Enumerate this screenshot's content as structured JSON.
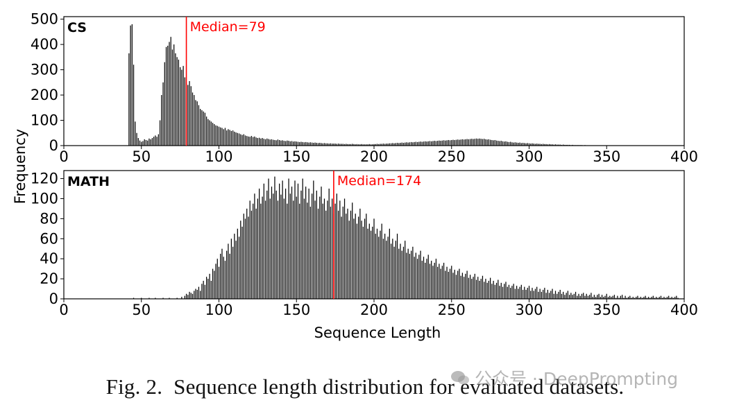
{
  "chart_data": [
    {
      "type": "bar",
      "panel_label": "CS",
      "median_label": "Median=79",
      "median": 79,
      "xlim": [
        0,
        400
      ],
      "ylim": [
        0,
        510
      ],
      "xticks": [
        0,
        50,
        100,
        150,
        200,
        250,
        300,
        350,
        400
      ],
      "yticks": [
        0,
        100,
        200,
        300,
        400,
        500
      ],
      "bin_width": 1,
      "x_start": 42,
      "values": [
        365,
        475,
        480,
        320,
        95,
        50,
        30,
        20,
        15,
        18,
        25,
        22,
        20,
        28,
        25,
        30,
        35,
        40,
        35,
        45,
        100,
        200,
        250,
        330,
        390,
        395,
        410,
        430,
        380,
        400,
        365,
        350,
        340,
        310,
        300,
        315,
        270,
        250,
        240,
        255,
        235,
        210,
        200,
        180,
        175,
        160,
        145,
        140,
        135,
        130,
        115,
        105,
        100,
        95,
        90,
        85,
        80,
        78,
        75,
        72,
        70,
        65,
        70,
        60,
        65,
        62,
        58,
        60,
        55,
        52,
        50,
        48,
        45,
        42,
        45,
        40,
        38,
        36,
        35,
        38,
        34,
        36,
        32,
        30,
        31,
        28,
        30,
        27,
        25,
        28,
        26,
        24,
        25,
        23,
        22,
        21,
        24,
        22,
        20,
        21,
        19,
        18,
        20,
        19,
        17,
        18,
        16,
        17,
        16,
        15,
        14,
        15,
        14,
        13,
        14,
        13,
        12,
        13,
        12,
        11,
        12,
        11,
        10,
        11,
        10,
        9,
        10,
        9,
        9,
        8,
        9,
        8,
        8,
        8,
        7,
        8,
        7,
        7,
        7,
        6,
        7,
        6,
        6,
        6,
        7,
        6,
        5,
        6,
        5,
        5,
        6,
        5,
        5,
        5,
        5,
        6,
        5,
        5,
        6,
        6,
        7,
        6,
        7,
        7,
        8,
        7,
        8,
        8,
        9,
        9,
        10,
        9,
        10,
        11,
        10,
        11,
        12,
        11,
        12,
        13,
        12,
        13,
        14,
        13,
        14,
        15,
        14,
        15,
        16,
        15,
        16,
        17,
        16,
        17,
        18,
        17,
        18,
        19,
        18,
        19,
        20,
        19,
        20,
        21,
        20,
        21,
        22,
        21,
        22,
        23,
        22,
        23,
        24,
        23,
        24,
        25,
        24,
        25,
        26,
        25,
        26,
        27,
        26,
        27,
        28,
        27,
        28,
        27,
        26,
        27,
        25,
        24,
        25,
        23,
        22,
        21,
        22,
        20,
        19,
        18,
        19,
        17,
        16,
        17,
        15,
        14,
        15,
        13,
        12,
        13,
        12,
        11,
        12,
        10,
        11,
        10,
        9,
        10,
        9,
        8,
        9,
        8,
        7,
        8,
        7,
        7,
        6,
        7,
        6,
        6,
        5,
        6,
        5,
        5,
        4,
        5,
        4,
        4,
        4,
        3,
        4,
        3,
        3,
        3,
        3,
        2,
        3,
        2,
        2,
        2,
        2,
        2,
        2,
        1,
        2,
        1,
        1,
        1,
        1,
        1,
        1,
        1,
        1,
        1,
        1,
        1,
        1,
        1,
        1,
        1,
        1,
        1,
        1,
        1,
        1,
        1,
        1,
        1,
        1,
        1,
        1,
        1,
        1,
        1,
        1,
        1,
        1,
        1,
        1,
        1,
        1,
        1,
        1,
        1,
        1,
        1,
        1,
        1,
        1,
        1,
        1,
        1,
        1,
        1,
        1
      ]
    },
    {
      "type": "bar",
      "panel_label": "MATH",
      "median_label": "Median=174",
      "median": 174,
      "xlim": [
        0,
        400
      ],
      "ylim": [
        0,
        128
      ],
      "xticks": [
        0,
        50,
        100,
        150,
        200,
        250,
        300,
        350,
        400
      ],
      "yticks": [
        0,
        20,
        40,
        60,
        80,
        100,
        120
      ],
      "bin_width": 1,
      "x_start": 40,
      "values": [
        0,
        0,
        0,
        0,
        0,
        1,
        0,
        0,
        0,
        0,
        1,
        0,
        0,
        0,
        0,
        1,
        0,
        0,
        0,
        1,
        0,
        0,
        0,
        0,
        1,
        0,
        0,
        0,
        1,
        0,
        0,
        0,
        0,
        1,
        0,
        0,
        2,
        0,
        3,
        5,
        4,
        7,
        6,
        5,
        8,
        10,
        9,
        12,
        8,
        15,
        18,
        14,
        22,
        20,
        25,
        18,
        30,
        28,
        35,
        40,
        32,
        45,
        50,
        42,
        38,
        48,
        55,
        45,
        60,
        52,
        65,
        58,
        70,
        62,
        78,
        72,
        85,
        80,
        90,
        82,
        98,
        88,
        95,
        105,
        90,
        100,
        110,
        95,
        102,
        115,
        98,
        108,
        120,
        100,
        112,
        105,
        122,
        108,
        98,
        115,
        104,
        118,
        100,
        110,
        95,
        120,
        105,
        112,
        98,
        118,
        102,
        115,
        95,
        108,
        120,
        100,
        112,
        96,
        110,
        92,
        105,
        118,
        98,
        108,
        90,
        102,
        112,
        95,
        100,
        88,
        98,
        110,
        92,
        100,
        85,
        95,
        105,
        88,
        98,
        82,
        92,
        100,
        85,
        90,
        78,
        88,
        96,
        80,
        85,
        75,
        82,
        90,
        78,
        72,
        80,
        85,
        70,
        75,
        68,
        72,
        80,
        65,
        70,
        62,
        68,
        75,
        60,
        65,
        58,
        62,
        70,
        55,
        60,
        52,
        58,
        65,
        50,
        55,
        48,
        52,
        58,
        46,
        50,
        45,
        48,
        52,
        42,
        46,
        40,
        44,
        48,
        38,
        42,
        36,
        40,
        44,
        35,
        38,
        33,
        36,
        40,
        32,
        35,
        30,
        33,
        36,
        28,
        32,
        27,
        30,
        33,
        26,
        29,
        24,
        28,
        30,
        23,
        26,
        22,
        25,
        28,
        21,
        24,
        20,
        22,
        25,
        19,
        22,
        18,
        20,
        23,
        17,
        20,
        16,
        18,
        21,
        15,
        18,
        14,
        16,
        19,
        13,
        16,
        12,
        15,
        17,
        12,
        14,
        11,
        13,
        15,
        10,
        13,
        10,
        12,
        14,
        9,
        12,
        9,
        11,
        13,
        8,
        11,
        8,
        10,
        12,
        7,
        10,
        7,
        9,
        11,
        6,
        9,
        6,
        8,
        10,
        5,
        8,
        5,
        7,
        9,
        5,
        7,
        4,
        6,
        8,
        4,
        6,
        4,
        5,
        7,
        3,
        5,
        3,
        5,
        6,
        3,
        5,
        3,
        4,
        6,
        2,
        4,
        2,
        4,
        5,
        2,
        4,
        2,
        3,
        5,
        2,
        3,
        2,
        3,
        4,
        1,
        3,
        1,
        3,
        4,
        1,
        3,
        1,
        2,
        3,
        1,
        2,
        1,
        2,
        3,
        1,
        2,
        1,
        2,
        3,
        1,
        2,
        1,
        2,
        3,
        1,
        2,
        1,
        2,
        3,
        1,
        2,
        1,
        2,
        3,
        1,
        2,
        1,
        2,
        3,
        1
      ]
    }
  ],
  "axes": {
    "xlabel": "Sequence Length",
    "ylabel": "Frequency"
  },
  "colors": {
    "bar": "#000000",
    "median_line": "#ff0000",
    "median_text": "#ff0000"
  },
  "caption": {
    "figure_number": "Fig. 2.",
    "text": "Sequence length distribution for evaluated datasets."
  },
  "watermark": {
    "icon": "wechat-logo-icon",
    "text": "公众号 · DeepPrompting"
  }
}
